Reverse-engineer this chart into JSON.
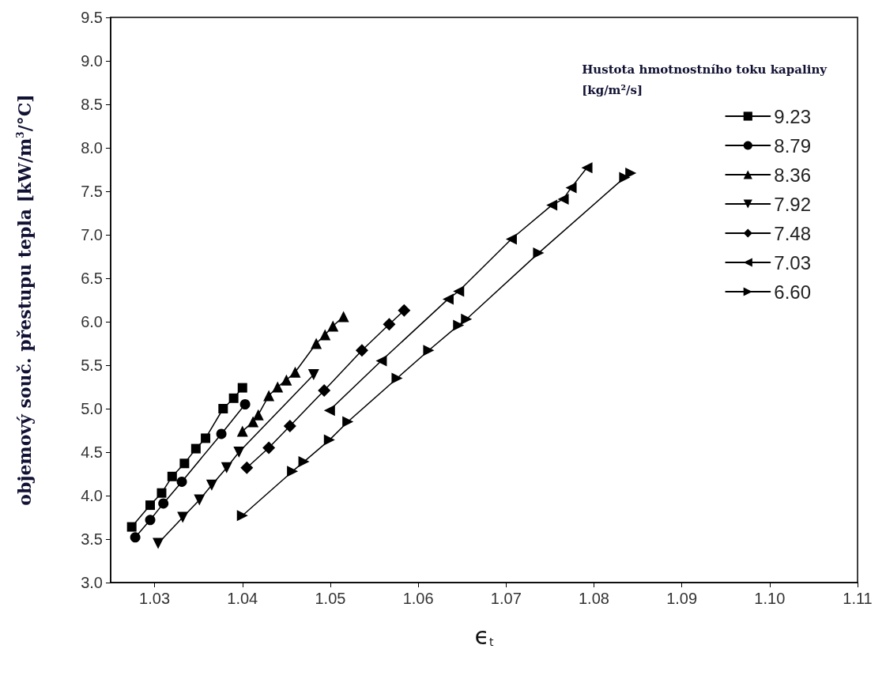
{
  "chart_data": {
    "type": "line",
    "xlabel": "ϵ$_{t}$",
    "ylabel": "objemový souč. přestupu tepla [kW/m$^{3}$/°C]",
    "legend_title": "Hustota hmotnostního toku kapaliny\n[kg/m²/s]",
    "legend": "top right",
    "grid": false,
    "line_style": "solid",
    "xlim": [
      1.025,
      1.11
    ],
    "xticks": [
      1.03,
      1.04,
      1.05,
      1.06,
      1.07,
      1.08,
      1.09,
      {
        "value": 1.1,
        "label": "1.10"
      },
      1.11
    ],
    "ylim": [
      3,
      9.5
    ],
    "yticks": [
      {
        "value": 3,
        "label": "3.0"
      },
      3.5,
      {
        "value": 4,
        "label": "4.0"
      },
      4.5,
      {
        "value": 5,
        "label": "5.0"
      },
      5.5,
      {
        "value": 6,
        "label": "6.0"
      },
      6.5,
      {
        "value": 7,
        "label": "7.0"
      },
      7.5,
      {
        "value": 8,
        "label": "8.0"
      },
      8.5,
      {
        "value": 9,
        "label": "9.0"
      },
      9.5
    ],
    "series": [
      {
        "name": "9.23",
        "color": "#000000",
        "marker": "square",
        "x": [
          1.0274,
          1.0295,
          1.0308,
          1.032,
          1.0334,
          1.0347,
          1.0358,
          1.0378,
          1.039,
          1.04
        ],
        "values": [
          3.64,
          3.89,
          4.03,
          4.22,
          4.37,
          4.54,
          4.66,
          5.0,
          5.12,
          5.24
        ]
      },
      {
        "name": "8.79",
        "color": "#000000",
        "marker": "circle",
        "x": [
          1.0278,
          1.0295,
          1.031,
          1.0331,
          1.0376,
          1.0403
        ],
        "values": [
          3.52,
          3.72,
          3.91,
          4.16,
          4.71,
          5.05
        ]
      },
      {
        "name": "8.36",
        "color": "#000000",
        "marker": "triangle",
        "x": [
          1.04,
          1.0412,
          1.0418,
          1.043,
          1.044,
          1.045,
          1.046,
          1.0484,
          1.0494,
          1.0503,
          1.0515
        ],
        "values": [
          4.74,
          4.85,
          4.93,
          5.15,
          5.25,
          5.33,
          5.42,
          5.75,
          5.85,
          5.95,
          6.06
        ]
      },
      {
        "name": "7.92",
        "color": "#000000",
        "marker": "triangle-down",
        "x": [
          1.0304,
          1.0332,
          1.0351,
          1.0365,
          1.0382,
          1.0396,
          1.0481
        ],
        "values": [
          3.45,
          3.75,
          3.95,
          4.12,
          4.32,
          4.5,
          5.39
        ]
      },
      {
        "name": "7.48",
        "color": "#000000",
        "marker": "diamond",
        "x": [
          1.0405,
          1.043,
          1.0454,
          1.0493,
          1.0536,
          1.0567,
          1.0584
        ],
        "values": [
          4.32,
          4.55,
          4.8,
          5.21,
          5.67,
          5.97,
          6.13
        ]
      },
      {
        "name": "7.03",
        "color": "#000000",
        "marker": "triangle-left",
        "x": [
          1.0499,
          1.0558,
          1.0634,
          1.0646,
          1.0706,
          1.0752,
          1.0765,
          1.0774,
          1.0792
        ],
        "values": [
          4.98,
          5.55,
          6.26,
          6.35,
          6.95,
          7.34,
          7.41,
          7.54,
          7.77
        ]
      },
      {
        "name": "6.60",
        "color": "#000000",
        "marker": "triangle-right",
        "x": [
          1.04,
          1.0457,
          1.047,
          1.0499,
          1.052,
          1.0576,
          1.0612,
          1.0646,
          1.0655,
          1.0737,
          1.0835,
          1.0842
        ],
        "values": [
          3.77,
          4.28,
          4.39,
          4.64,
          4.85,
          5.35,
          5.67,
          5.96,
          6.03,
          6.79,
          7.66,
          7.71
        ]
      }
    ]
  }
}
